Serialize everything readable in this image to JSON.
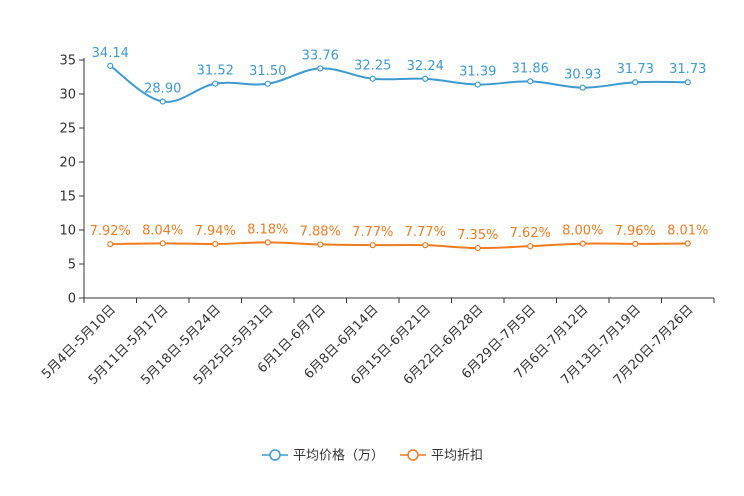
{
  "chart_data": {
    "type": "line",
    "title": "",
    "xlabel": "",
    "ylabel": "",
    "ylim": [
      0,
      35
    ],
    "yticks": [
      0,
      5,
      10,
      15,
      20,
      25,
      30,
      35
    ],
    "grid": false,
    "legend_position": "bottom",
    "categories": [
      "5月4日-5月10日",
      "5月11日-5月17日",
      "5月18日-5月24日",
      "5月25日-5月31日",
      "6月1日-6月7日",
      "6月8日-6月14日",
      "6月15日-6月21日",
      "6月22日-6月28日",
      "6月29日-7月5日",
      "7月6日-7月12日",
      "7月13日-7月19日",
      "7月20日-7月26日"
    ],
    "series": [
      {
        "name": "平均价格（万）",
        "color": "#3d9ad1",
        "values": [
          34.14,
          28.9,
          31.52,
          31.5,
          33.76,
          32.25,
          32.24,
          31.39,
          31.86,
          30.93,
          31.73,
          31.73
        ],
        "labels": [
          "34.14",
          "28.90",
          "31.52",
          "31.50",
          "33.76",
          "32.25",
          "32.24",
          "31.39",
          "31.86",
          "30.93",
          "31.73",
          "31.73"
        ]
      },
      {
        "name": "平均折扣",
        "color": "#f07c1f",
        "values": [
          7.92,
          8.04,
          7.94,
          8.18,
          7.88,
          7.77,
          7.77,
          7.35,
          7.62,
          8.0,
          7.96,
          8.01
        ],
        "labels": [
          "7.92%",
          "8.04%",
          "7.94%",
          "8.18%",
          "7.88%",
          "7.77%",
          "7.77%",
          "7.35%",
          "7.62%",
          "8.00%",
          "7.96%",
          "8.01%"
        ]
      }
    ]
  }
}
